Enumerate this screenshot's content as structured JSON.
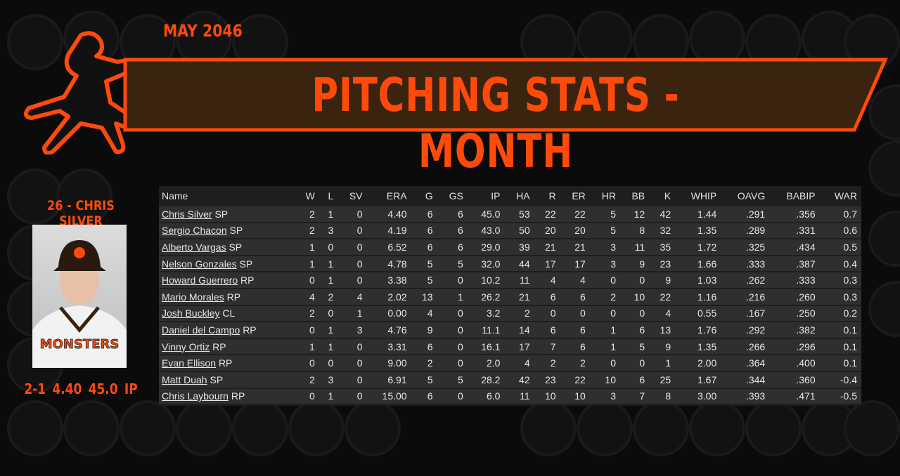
{
  "header": {
    "date": "MAY 2046",
    "title": "PITCHING STATS - MONTH"
  },
  "featured": {
    "name": "26 - CHRIS SILVER",
    "line": "2-1  4.40  45.0 IP",
    "jersey_text": "MONSTERS"
  },
  "colors": {
    "accent": "#ff4a0a",
    "banner": "#3a2410"
  },
  "table": {
    "columns": [
      "Name",
      "W",
      "L",
      "SV",
      "ERA",
      "G",
      "GS",
      "IP",
      "HA",
      "R",
      "ER",
      "HR",
      "BB",
      "K",
      "WHIP",
      "OAVG",
      "BABIP",
      "WAR"
    ],
    "rows": [
      {
        "name": "Chris Silver",
        "pos": "SP",
        "stats": [
          "2",
          "1",
          "0",
          "4.40",
          "6",
          "6",
          "45.0",
          "53",
          "22",
          "22",
          "5",
          "12",
          "42",
          "1.44",
          ".291",
          ".356",
          "0.7"
        ]
      },
      {
        "name": "Sergio Chacon",
        "pos": "SP",
        "stats": [
          "2",
          "3",
          "0",
          "4.19",
          "6",
          "6",
          "43.0",
          "50",
          "20",
          "20",
          "5",
          "8",
          "32",
          "1.35",
          ".289",
          ".331",
          "0.6"
        ]
      },
      {
        "name": "Alberto Vargas",
        "pos": "SP",
        "stats": [
          "1",
          "0",
          "0",
          "6.52",
          "6",
          "6",
          "29.0",
          "39",
          "21",
          "21",
          "3",
          "11",
          "35",
          "1.72",
          ".325",
          ".434",
          "0.5"
        ]
      },
      {
        "name": "Nelson Gonzales",
        "pos": "SP",
        "stats": [
          "1",
          "1",
          "0",
          "4.78",
          "5",
          "5",
          "32.0",
          "44",
          "17",
          "17",
          "3",
          "9",
          "23",
          "1.66",
          ".333",
          ".387",
          "0.4"
        ]
      },
      {
        "name": "Howard Guerrero",
        "pos": "RP",
        "stats": [
          "0",
          "1",
          "0",
          "3.38",
          "5",
          "0",
          "10.2",
          "11",
          "4",
          "4",
          "0",
          "0",
          "9",
          "1.03",
          ".262",
          ".333",
          "0.3"
        ]
      },
      {
        "name": "Mario Morales",
        "pos": "RP",
        "stats": [
          "4",
          "2",
          "4",
          "2.02",
          "13",
          "1",
          "26.2",
          "21",
          "6",
          "6",
          "2",
          "10",
          "22",
          "1.16",
          ".216",
          ".260",
          "0.3"
        ]
      },
      {
        "name": "Josh Buckley",
        "pos": "CL",
        "stats": [
          "2",
          "0",
          "1",
          "0.00",
          "4",
          "0",
          "3.2",
          "2",
          "0",
          "0",
          "0",
          "0",
          "4",
          "0.55",
          ".167",
          ".250",
          "0.2"
        ]
      },
      {
        "name": "Daniel del Campo",
        "pos": "RP",
        "stats": [
          "0",
          "1",
          "3",
          "4.76",
          "9",
          "0",
          "11.1",
          "14",
          "6",
          "6",
          "1",
          "6",
          "13",
          "1.76",
          ".292",
          ".382",
          "0.1"
        ]
      },
      {
        "name": "Vinny Ortiz",
        "pos": "RP",
        "stats": [
          "1",
          "1",
          "0",
          "3.31",
          "6",
          "0",
          "16.1",
          "17",
          "7",
          "6",
          "1",
          "5",
          "9",
          "1.35",
          ".266",
          ".296",
          "0.1"
        ]
      },
      {
        "name": "Evan Ellison",
        "pos": "RP",
        "stats": [
          "0",
          "0",
          "0",
          "9.00",
          "2",
          "0",
          "2.0",
          "4",
          "2",
          "2",
          "0",
          "0",
          "1",
          "2.00",
          ".364",
          ".400",
          "0.1"
        ]
      },
      {
        "name": "Matt Duah",
        "pos": "SP",
        "stats": [
          "2",
          "3",
          "0",
          "6.91",
          "5",
          "5",
          "28.2",
          "42",
          "23",
          "22",
          "10",
          "6",
          "25",
          "1.67",
          ".344",
          ".360",
          "-0.4"
        ]
      },
      {
        "name": "Chris Laybourn",
        "pos": "RP",
        "stats": [
          "0",
          "1",
          "0",
          "15.00",
          "6",
          "0",
          "6.0",
          "11",
          "10",
          "10",
          "3",
          "7",
          "8",
          "3.00",
          ".393",
          ".471",
          "-0.5"
        ]
      }
    ]
  }
}
